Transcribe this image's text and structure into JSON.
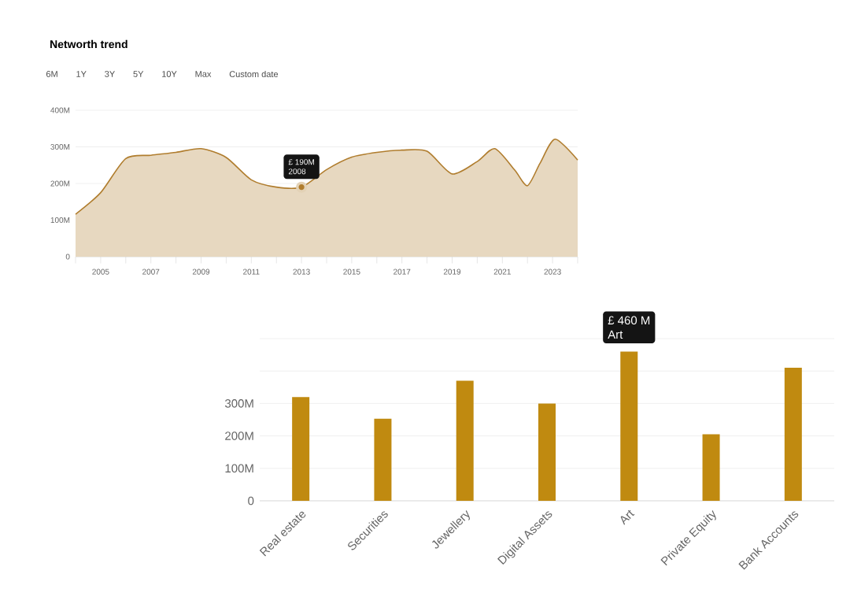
{
  "chart_data": [
    {
      "type": "area",
      "title": "Networth trend",
      "annotations": [
        "6M",
        "1Y",
        "3Y",
        "5Y",
        "10Y",
        "Max",
        "Custom date",
        {
          "text": "£ 190M",
          "x": 2013,
          "y": 190
        },
        "2008"
      ],
      "x": [
        2004,
        2005,
        2006,
        2007,
        2008,
        2009,
        2010,
        2011,
        2012,
        2013,
        2014,
        2015,
        2016,
        2017,
        2018,
        2019,
        2020,
        2020.7,
        2021.5,
        2022,
        2022.5,
        2023.1,
        2024
      ],
      "values": [
        116,
        175,
        268,
        277,
        285,
        295,
        271,
        210,
        190,
        190,
        238,
        272,
        285,
        291,
        288,
        226,
        260,
        295,
        236,
        194,
        255,
        321,
        264
      ],
      "color": "#b07d2e",
      "xlim": [
        2004,
        2024
      ],
      "ylim": [
        0,
        400
      ],
      "xticks": [
        {
          "value": 2004,
          "label": null
        },
        2005,
        {
          "value": 2006,
          "label": null
        },
        2007,
        {
          "value": 2008,
          "label": null
        },
        2009,
        {
          "value": 2010,
          "label": null
        },
        2011,
        {
          "value": 2012,
          "label": null
        },
        2013,
        {
          "value": 2014,
          "label": null
        },
        2015,
        {
          "value": 2016,
          "label": null
        },
        2017,
        {
          "value": 2018,
          "label": null
        },
        2019,
        {
          "value": 2020,
          "label": null
        },
        2021,
        {
          "value": 2022,
          "label": null
        },
        2023,
        {
          "value": 2024,
          "label": null
        }
      ],
      "yticks": [
        0,
        {
          "value": 100,
          "label": "100M"
        },
        {
          "value": 200,
          "label": "200M"
        },
        {
          "value": 300,
          "label": "300M"
        },
        {
          "value": 400,
          "label": "400M"
        }
      ],
      "grid": "y"
    },
    {
      "type": "bar",
      "categories": [
        "Real estate",
        "Securities",
        "Jewellery",
        "Digital Assets",
        "Art",
        "Private Equity",
        "Bank Accounts"
      ],
      "values": [
        320,
        253,
        370,
        300,
        460,
        205,
        410
      ],
      "color": "#c08a10",
      "ylim": [
        0,
        500
      ],
      "yticks": [
        0,
        {
          "value": 100,
          "label": "100M"
        },
        {
          "value": 200,
          "label": "200M"
        },
        {
          "value": 300,
          "label": "300M"
        },
        {
          "value": 400,
          "label": null
        },
        {
          "value": 500,
          "label": null
        }
      ],
      "grid": "y",
      "annotations": [
        {
          "text": "£ 460 M",
          "x": "Art",
          "y": 460
        },
        "Art"
      ]
    }
  ]
}
